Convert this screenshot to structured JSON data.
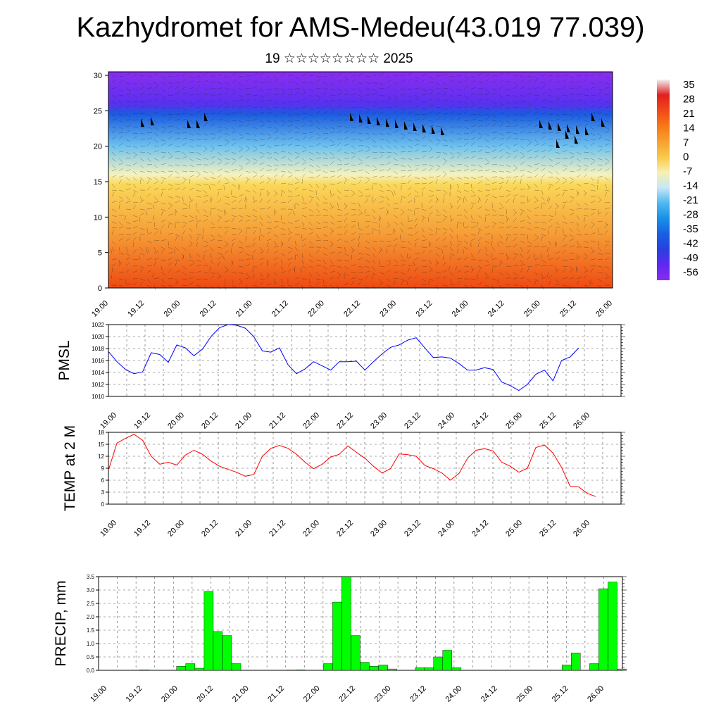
{
  "title": "Kazhydromet for AMS-Medeu(43.019 77.039)",
  "subtitle": "19 ☆☆☆☆☆☆☆☆ 2025",
  "x_tick_labels": [
    "19.00",
    "19.12",
    "20.00",
    "20.12",
    "21.00",
    "21.12",
    "22.00",
    "22.12",
    "23.00",
    "23.12",
    "24.00",
    "24.12",
    "25.00",
    "25.12",
    "26.00"
  ],
  "chart_data": [
    {
      "type": "heatmap",
      "y_ticks": [
        "0",
        "5",
        "10",
        "15",
        "20",
        "25",
        "30"
      ],
      "ylim": [
        0,
        30.5
      ],
      "colorbar": {
        "labels": [
          "35",
          "28",
          "21",
          "14",
          "7",
          "0",
          "-7",
          "-14",
          "-21",
          "-28",
          "-35",
          "-42",
          "-49",
          "-56"
        ],
        "colors": [
          "#f0f0f0",
          "#e02020",
          "#f04818",
          "#f87818",
          "#f8a030",
          "#f8c848",
          "#f8f0b0",
          "#c8e8f8",
          "#50b8f0",
          "#1890e8",
          "#1860e0",
          "#2840e0",
          "#6028f0",
          "#8a2af0"
        ]
      },
      "field": {
        "isotherm_heights": [
          0,
          8,
          14.6,
          16,
          20,
          24.5,
          26,
          30.5
        ],
        "isotherm_colors": [
          "#ee4a12",
          "#f6a038",
          "#fad858",
          "#f6f2c0",
          "#6ec2ee",
          "#1a5ce0",
          "#5a30f0",
          "#8a2ef0"
        ]
      },
      "grid": false
    },
    {
      "type": "line",
      "ylabel": "PMSL",
      "series_color": "#0000ff",
      "y_ticks": [
        "1010",
        "1012",
        "1014",
        "1016",
        "1018",
        "1020",
        "1022"
      ],
      "ylim": [
        1010,
        1022
      ],
      "x_start": 19,
      "x_step_days": 0.125,
      "values": [
        1017.5,
        1015.8,
        1014.5,
        1013.8,
        1014.1,
        1017.3,
        1017.0,
        1015.7,
        1018.6,
        1018.1,
        1016.8,
        1017.9,
        1020.0,
        1021.5,
        1022.0,
        1021.9,
        1021.4,
        1020.0,
        1017.6,
        1017.4,
        1018.1,
        1015.3,
        1013.8,
        1014.6,
        1015.8,
        1015.1,
        1014.4,
        1015.8,
        1015.8,
        1015.9,
        1014.4,
        1015.8,
        1017.1,
        1018.2,
        1018.6,
        1019.4,
        1019.8,
        1018.1,
        1016.5,
        1016.6,
        1016.4,
        1015.5,
        1014.4,
        1014.4,
        1014.8,
        1014.5,
        1012.4,
        1011.8,
        1011.0,
        1012.0,
        1013.7,
        1014.4,
        1012.6,
        1016.0,
        1016.6,
        1018.1
      ],
      "grid": true
    },
    {
      "type": "line",
      "ylabel": "TEMP at 2 M",
      "series_color": "#ff0000",
      "y_ticks": [
        "0",
        "3",
        "6",
        "9",
        "12",
        "15",
        "18"
      ],
      "ylim": [
        0,
        18
      ],
      "x_start": 19,
      "x_step_days": 0.125,
      "values": [
        8.5,
        15.3,
        16.5,
        17.5,
        16.0,
        12.0,
        10.0,
        10.5,
        9.8,
        12.3,
        13.5,
        12.5,
        10.8,
        9.5,
        8.7,
        8.0,
        7.0,
        7.4,
        12.0,
        14.0,
        14.7,
        14.0,
        12.5,
        10.5,
        8.9,
        10.0,
        11.8,
        12.5,
        14.6,
        13.0,
        11.5,
        9.5,
        7.8,
        8.9,
        12.6,
        12.4,
        12.0,
        9.7,
        8.9,
        7.8,
        6.0,
        7.7,
        11.5,
        13.5,
        13.9,
        13.3,
        10.5,
        9.5,
        8.0,
        9.0,
        14.2,
        14.8,
        12.8,
        9.2,
        4.5,
        4.3,
        2.7,
        1.9
      ],
      "grid": true
    },
    {
      "type": "bar",
      "ylabel": "PRECIP, mm",
      "series_color": "#00ff00",
      "y_ticks": [
        "0.0",
        "0.5",
        "1.0",
        "1.5",
        "2.0",
        "2.5",
        "3.0",
        "3.5"
      ],
      "ylim": [
        0,
        3.5
      ],
      "x_start": 19,
      "x_step_days": 0.125,
      "values": [
        0,
        0,
        0,
        0,
        0.02,
        0,
        0,
        0,
        0.15,
        0.25,
        0.08,
        2.95,
        1.45,
        1.3,
        0.25,
        0,
        0,
        0,
        0,
        0,
        0.01,
        0.02,
        0,
        0,
        0.25,
        2.55,
        3.5,
        1.3,
        0.3,
        0.15,
        0.2,
        0.05,
        0,
        0,
        0.1,
        0.1,
        0.5,
        0.75,
        0.1,
        0,
        0,
        0,
        0,
        0,
        0,
        0,
        0,
        0,
        0,
        0,
        0.2,
        0.65,
        0,
        0.25,
        3.05,
        3.3,
        0.05
      ],
      "grid": true
    }
  ]
}
